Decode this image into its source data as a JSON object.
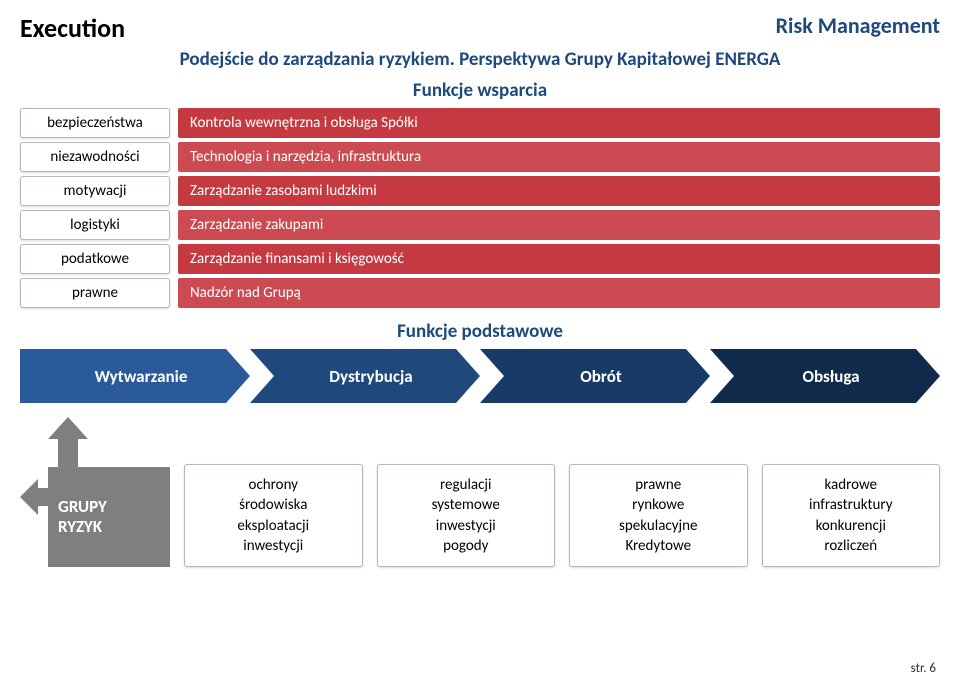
{
  "header": {
    "left": "Execution",
    "right": "Risk Management"
  },
  "subtitle": "Podejście do zarządzania ryzykiem. Perspektywa Grupy Kapitałowej ENERGA",
  "support_section_label": "Funkcje wsparcia",
  "basic_section_label": "Funkcje podstawowe",
  "support_rows": [
    {
      "left": "bezpieczeństwa",
      "right": "Kontrola wewnętrzna i obsługa Spółki",
      "color": "#c53a41"
    },
    {
      "left": "niezawodności",
      "right": "Technologia i narzędzia, infrastruktura",
      "color": "#cc4a51"
    },
    {
      "left": "motywacji",
      "right": "Zarządzanie zasobami ludzkimi",
      "color": "#c53a41"
    },
    {
      "left": "logistyki",
      "right": "Zarządzanie zakupami",
      "color": "#cc4a51"
    },
    {
      "left": "podatkowe",
      "right": "Zarządzanie finansami i księgowość",
      "color": "#c53a41"
    },
    {
      "left": "prawne",
      "right": "Nadzór nad Grupą",
      "color": "#cc4a51"
    }
  ],
  "arrows": [
    {
      "label": "Wytwarzanie",
      "color": "#2a5a9a"
    },
    {
      "label": "Dystrybucja",
      "color": "#1f497d"
    },
    {
      "label": "Obrót",
      "color": "#173a66"
    },
    {
      "label": "Obsługa",
      "color": "#102a4c"
    }
  ],
  "grupy": {
    "line1": "GRUPY",
    "line2": "RYZYK",
    "box_color": "#7f7f7f",
    "arrow_color": "#7f7f7f"
  },
  "risk_boxes": [
    {
      "lines": [
        "ochrony",
        "środowiska",
        "eksploatacji",
        "inwestycji"
      ]
    },
    {
      "lines": [
        "regulacji",
        "systemowe",
        "inwestycji",
        "pogody"
      ]
    },
    {
      "lines": [
        "prawne",
        "rynkowe",
        "spekulacyjne",
        "Kredytowe"
      ]
    },
    {
      "lines": [
        "kadrowe",
        "infrastruktury",
        "konkurencji",
        "rozliczeń"
      ]
    }
  ],
  "page_number": "str. 6"
}
